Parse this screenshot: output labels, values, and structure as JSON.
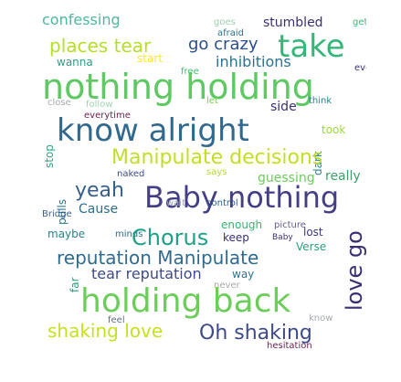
{
  "word_cloud": {
    "words": [
      {
        "key": "confessing",
        "text": "confessing",
        "color": "#4fb6a1"
      },
      {
        "key": "take",
        "text": "take",
        "color": "#35b77a"
      },
      {
        "key": "places_tear",
        "text": "places tear",
        "color": "#b5de2b"
      },
      {
        "key": "go_crazy",
        "text": "go crazy",
        "color": "#2b4f8a"
      },
      {
        "key": "stumbled",
        "text": "stumbled",
        "color": "#3b2f73"
      },
      {
        "key": "inhibitions",
        "text": "inhibitions",
        "color": "#2c728e"
      },
      {
        "key": "wanna",
        "text": "wanna",
        "color": "#2f9c8a"
      },
      {
        "key": "start",
        "text": "start",
        "color": "#fde725"
      },
      {
        "key": "free",
        "text": "free",
        "color": "#42be71"
      },
      {
        "key": "goes",
        "text": "goes",
        "color": "#9fcfb2"
      },
      {
        "key": "afraid",
        "text": "afraid",
        "color": "#2c728e"
      },
      {
        "key": "gets",
        "text": "gets",
        "color": "#35b779"
      },
      {
        "key": "everybody",
        "text": "everybody",
        "color": "#3b2f73"
      },
      {
        "key": "nothing_holding",
        "text": "nothing holding",
        "color": "#5ec962"
      },
      {
        "key": "know_alright",
        "text": "know alright",
        "color": "#31688e"
      },
      {
        "key": "close",
        "text": "close",
        "color": "#a4a8ae"
      },
      {
        "key": "follow",
        "text": "follow",
        "color": "#9fd3b7"
      },
      {
        "key": "everytime",
        "text": "everytime",
        "color": "#6a1f4f"
      },
      {
        "key": "let",
        "text": "let",
        "color": "#7ad151"
      },
      {
        "key": "side",
        "text": "side",
        "color": "#3b2f73"
      },
      {
        "key": "think",
        "text": "think",
        "color": "#26828e"
      },
      {
        "key": "took",
        "text": "took",
        "color": "#9bd93c"
      },
      {
        "key": "stop",
        "text": "stop",
        "color": "#25a884"
      },
      {
        "key": "dark",
        "text": "dark",
        "color": "#24868e"
      },
      {
        "key": "manipulate_decisions",
        "text": "Manipulate decisions",
        "color": "#c2df23"
      },
      {
        "key": "naked",
        "text": "naked",
        "color": "#3e4a89"
      },
      {
        "key": "pulls",
        "text": "pulls",
        "color": "#2a788e"
      },
      {
        "key": "says",
        "text": "says",
        "color": "#b5de2b"
      },
      {
        "key": "guessing",
        "text": "guessing",
        "color": "#6ccd5a"
      },
      {
        "key": "really",
        "text": "really",
        "color": "#3e9d6a"
      },
      {
        "key": "yeah",
        "text": "yeah",
        "color": "#355f8d"
      },
      {
        "key": "baby_nothing",
        "text": "Baby nothing",
        "color": "#433e85"
      },
      {
        "key": "wait",
        "text": "wait",
        "color": "#9fa7b0"
      },
      {
        "key": "control",
        "text": "control",
        "color": "#2f5b8a"
      },
      {
        "key": "cause",
        "text": "Cause",
        "color": "#2b6f8e"
      },
      {
        "key": "bridge",
        "text": "Bridge",
        "color": "#355f8d"
      },
      {
        "key": "maybe",
        "text": "maybe",
        "color": "#26828e"
      },
      {
        "key": "minds",
        "text": "minds",
        "color": "#2f6b8e"
      },
      {
        "key": "enough",
        "text": "enough",
        "color": "#37b56f"
      },
      {
        "key": "picture",
        "text": "picture",
        "color": "#6a5c8e"
      },
      {
        "key": "chorus",
        "text": "Chorus",
        "color": "#1fa187"
      },
      {
        "key": "keep",
        "text": "keep",
        "color": "#3b2f73"
      },
      {
        "key": "baby_small",
        "text": "Baby",
        "color": "#3b2f73"
      },
      {
        "key": "lost",
        "text": "lost",
        "color": "#3b3a7a"
      },
      {
        "key": "verse",
        "text": "Verse",
        "color": "#2aa07e"
      },
      {
        "key": "reputation_manipulate",
        "text": "reputation Manipulate",
        "color": "#2f6b8e"
      },
      {
        "key": "love_go",
        "text": "love go",
        "color": "#3b2f73"
      },
      {
        "key": "tear_reputation",
        "text": "tear reputation",
        "color": "#3e4a89"
      },
      {
        "key": "way",
        "text": "way",
        "color": "#2a788e"
      },
      {
        "key": "far",
        "text": "far",
        "color": "#2aa07e"
      },
      {
        "key": "never",
        "text": "never",
        "color": "#a4a8ae"
      },
      {
        "key": "holding_back",
        "text": "holding back",
        "color": "#6ccd5a"
      },
      {
        "key": "shaking_love",
        "text": "shaking love",
        "color": "#c8e020"
      },
      {
        "key": "oh_shaking",
        "text": "Oh shaking",
        "color": "#3e4a89"
      },
      {
        "key": "feel",
        "text": "feel",
        "color": "#5f6f7a"
      },
      {
        "key": "know_small",
        "text": "know",
        "color": "#a4a8ae"
      },
      {
        "key": "hesitation",
        "text": "hesitation",
        "color": "#6a1f4f"
      }
    ]
  }
}
